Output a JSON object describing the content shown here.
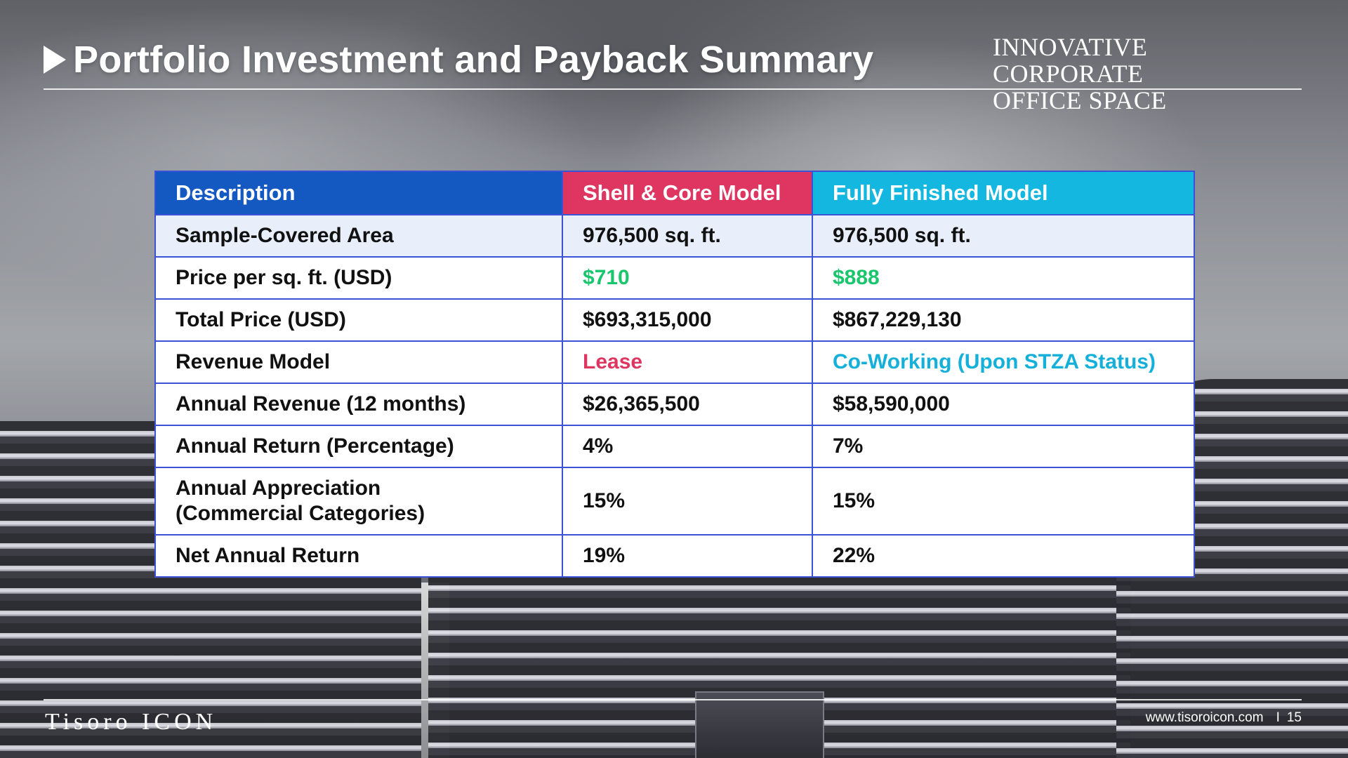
{
  "header": {
    "title": "Portfolio Investment and Payback Summary",
    "brand_line1": "INNOVATIVE CORPORATE",
    "brand_line2": "OFFICE SPACE"
  },
  "table": {
    "headers": [
      "Description",
      "Shell & Core Model",
      "Fully Finished Model"
    ],
    "rows": [
      {
        "description": "Sample-Covered Area",
        "shell": "976,500 sq. ft.",
        "finished": "976,500 sq. ft."
      },
      {
        "description": "Price per sq. ft. (USD)",
        "shell": "$710",
        "finished": "$888"
      },
      {
        "description": "Total Price (USD)",
        "shell": "$693,315,000",
        "finished": "$867,229,130"
      },
      {
        "description": "Revenue Model",
        "shell": "Lease",
        "finished": "Co-Working (Upon STZA Status)"
      },
      {
        "description": "Annual Revenue (12 months)",
        "shell": "$26,365,500",
        "finished": "$58,590,000"
      },
      {
        "description": "Annual Return (Percentage)",
        "shell": "4%",
        "finished": "7%"
      },
      {
        "description_line1": "Annual Appreciation",
        "description_line2": "(Commercial Categories)",
        "shell": "15%",
        "finished": "15%"
      },
      {
        "description": "Net Annual Return",
        "shell": "19%",
        "finished": "22%"
      }
    ]
  },
  "footer": {
    "brand": "Tisoro ICON",
    "url": "www.tisoroicon.com",
    "separator": "I",
    "page_number": "15"
  },
  "colors": {
    "header_description": "#1459c2",
    "header_shell": "#de3561",
    "header_finished": "#13b7e0",
    "price_green": "#19c56d",
    "lease_pink": "#de3561",
    "coworking_cyan": "#14b0d9"
  }
}
